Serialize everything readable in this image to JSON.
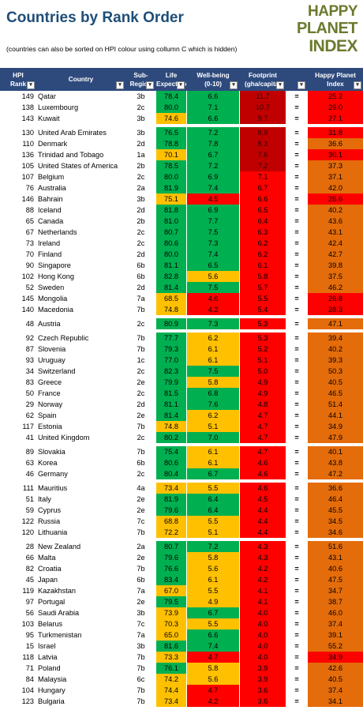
{
  "title": "Countries by Rank Order",
  "subtitle": "(countries can also be sorted on HPI colour using collumn C which is hidden)",
  "logo": {
    "line1": "HAPPY",
    "line2": "PLANET",
    "line3": "INDEX"
  },
  "colors": {
    "header_bg": "#2e4a7d",
    "green": "#00b050",
    "yellow": "#ffc000",
    "red": "#ff0000",
    "dark_red": "#c00000",
    "orange": "#e46c0a",
    "title": "#1f4e79",
    "logo": "#6b7a2e"
  },
  "headers": {
    "rank": [
      "HPI",
      "Rank"
    ],
    "country": [
      "Country"
    ],
    "sub": [
      "Sub-",
      "Region"
    ],
    "life": [
      "Life",
      "Expectancy"
    ],
    "wb": [
      "Well-being",
      "(0-10)"
    ],
    "fp": [
      "Footprint",
      "(gha/capita)"
    ],
    "cmp": [
      ""
    ],
    "hpi": [
      "Happy Planet",
      "Index"
    ]
  },
  "rows": [
    {
      "rank": "149",
      "country": "Qatar",
      "sub": "3b",
      "life": "78.4",
      "wb": "6.6",
      "fp": "11.7",
      "cmp": "=",
      "hpi": "25.2",
      "lc": "g",
      "wc": "g",
      "fc": "dr",
      "hc": "r"
    },
    {
      "rank": "138",
      "country": "Luxembourg",
      "sub": "2c",
      "life": "80.0",
      "wb": "7.1",
      "fp": "10.7",
      "cmp": "=",
      "hpi": "29.0",
      "lc": "g",
      "wc": "g",
      "fc": "dr",
      "hc": "r"
    },
    {
      "rank": "143",
      "country": "Kuwait",
      "sub": "3b",
      "life": "74.6",
      "wb": "6.6",
      "fp": "9.7",
      "cmp": "=",
      "hpi": "27.1",
      "lc": "y",
      "wc": "g",
      "fc": "dr",
      "hc": "r"
    },
    {
      "gap": true
    },
    {
      "rank": "130",
      "country": "United Arab Emirates",
      "sub": "3b",
      "life": "76.5",
      "wb": "7.2",
      "fp": "8.9",
      "cmp": "=",
      "hpi": "31.8",
      "lc": "g",
      "wc": "g",
      "fc": "dr",
      "hc": "r"
    },
    {
      "rank": "110",
      "country": "Denmark",
      "sub": "2d",
      "life": "78.8",
      "wb": "7.8",
      "fp": "8.3",
      "cmp": "=",
      "hpi": "36.6",
      "lc": "g",
      "wc": "g",
      "fc": "dr",
      "hc": "o"
    },
    {
      "rank": "136",
      "country": "Trinidad and Tobago",
      "sub": "1a",
      "life": "70.1",
      "wb": "6.7",
      "fp": "7.6",
      "cmp": "=",
      "hpi": "30.1",
      "lc": "y",
      "wc": "g",
      "fc": "dr",
      "hc": "r"
    },
    {
      "rank": "105",
      "country": "United States of America",
      "sub": "2b",
      "life": "78.5",
      "wb": "7.2",
      "fp": "7.2",
      "cmp": "=",
      "hpi": "37.3",
      "lc": "g",
      "wc": "g",
      "fc": "dr",
      "hc": "o"
    },
    {
      "rank": "107",
      "country": "Belgium",
      "sub": "2c",
      "life": "80.0",
      "wb": "6.9",
      "fp": "7.1",
      "cmp": "=",
      "hpi": "37.1",
      "lc": "g",
      "wc": "g",
      "fc": "r",
      "hc": "o"
    },
    {
      "rank": "76",
      "country": "Australia",
      "sub": "2a",
      "life": "81.9",
      "wb": "7.4",
      "fp": "6.7",
      "cmp": "=",
      "hpi": "42.0",
      "lc": "g",
      "wc": "g",
      "fc": "r",
      "hc": "o"
    },
    {
      "rank": "146",
      "country": "Bahrain",
      "sub": "3b",
      "life": "75.1",
      "wb": "4.5",
      "fp": "6.6",
      "cmp": "=",
      "hpi": "26.6",
      "lc": "y",
      "wc": "r",
      "fc": "r",
      "hc": "r"
    },
    {
      "rank": "88",
      "country": "Iceland",
      "sub": "2d",
      "life": "81.8",
      "wb": "6.9",
      "fp": "6.5",
      "cmp": "=",
      "hpi": "40.2",
      "lc": "g",
      "wc": "g",
      "fc": "r",
      "hc": "o"
    },
    {
      "rank": "65",
      "country": "Canada",
      "sub": "2b",
      "life": "81.0",
      "wb": "7.7",
      "fp": "6.4",
      "cmp": "=",
      "hpi": "43.6",
      "lc": "g",
      "wc": "g",
      "fc": "r",
      "hc": "o"
    },
    {
      "rank": "67",
      "country": "Netherlands",
      "sub": "2c",
      "life": "80.7",
      "wb": "7.5",
      "fp": "6.3",
      "cmp": "=",
      "hpi": "43.1",
      "lc": "g",
      "wc": "g",
      "fc": "r",
      "hc": "o"
    },
    {
      "rank": "73",
      "country": "Ireland",
      "sub": "2c",
      "life": "80.6",
      "wb": "7.3",
      "fp": "6.2",
      "cmp": "=",
      "hpi": "42.4",
      "lc": "g",
      "wc": "g",
      "fc": "r",
      "hc": "o"
    },
    {
      "rank": "70",
      "country": "Finland",
      "sub": "2d",
      "life": "80.0",
      "wb": "7.4",
      "fp": "6.2",
      "cmp": "=",
      "hpi": "42.7",
      "lc": "g",
      "wc": "g",
      "fc": "r",
      "hc": "o"
    },
    {
      "rank": "90",
      "country": "Singapore",
      "sub": "6b",
      "life": "81.1",
      "wb": "6.5",
      "fp": "6.1",
      "cmp": "=",
      "hpi": "39.8",
      "lc": "g",
      "wc": "g",
      "fc": "r",
      "hc": "o"
    },
    {
      "rank": "102",
      "country": "Hong Kong",
      "sub": "6b",
      "life": "82.8",
      "wb": "5.6",
      "fp": "5.8",
      "cmp": "=",
      "hpi": "37.5",
      "lc": "g",
      "wc": "y",
      "fc": "r",
      "hc": "o"
    },
    {
      "rank": "52",
      "country": "Sweden",
      "sub": "2d",
      "life": "81.4",
      "wb": "7.5",
      "fp": "5.7",
      "cmp": "=",
      "hpi": "46.2",
      "lc": "g",
      "wc": "g",
      "fc": "r",
      "hc": "o"
    },
    {
      "rank": "145",
      "country": "Mongolia",
      "sub": "7a",
      "life": "68.5",
      "wb": "4.6",
      "fp": "5.5",
      "cmp": "=",
      "hpi": "26.8",
      "lc": "y",
      "wc": "r",
      "fc": "r",
      "hc": "r"
    },
    {
      "rank": "140",
      "country": "Macedonia",
      "sub": "7b",
      "life": "74.8",
      "wb": "4.2",
      "fp": "5.4",
      "cmp": "=",
      "hpi": "28.3",
      "lc": "y",
      "wc": "r",
      "fc": "r",
      "hc": "r"
    },
    {
      "gap": true
    },
    {
      "rank": "48",
      "country": "Austria",
      "sub": "2c",
      "life": "80.9",
      "wb": "7.3",
      "fp": "5.3",
      "cmp": "=",
      "hpi": "47.1",
      "lc": "g",
      "wc": "g",
      "fc": "r",
      "hc": "o"
    },
    {
      "gap": true
    },
    {
      "rank": "92",
      "country": "Czech Republic",
      "sub": "7b",
      "life": "77.7",
      "wb": "6.2",
      "fp": "5.3",
      "cmp": "=",
      "hpi": "39.4",
      "lc": "g",
      "wc": "y",
      "fc": "r",
      "hc": "o"
    },
    {
      "rank": "87",
      "country": "Slovenia",
      "sub": "7b",
      "life": "79.3",
      "wb": "6.1",
      "fp": "5.2",
      "cmp": "=",
      "hpi": "40.2",
      "lc": "g",
      "wc": "y",
      "fc": "r",
      "hc": "o"
    },
    {
      "rank": "93",
      "country": "Uruguay",
      "sub": "1c",
      "life": "77.0",
      "wb": "6.1",
      "fp": "5.1",
      "cmp": "=",
      "hpi": "39.3",
      "lc": "g",
      "wc": "y",
      "fc": "r",
      "hc": "o"
    },
    {
      "rank": "34",
      "country": "Switzerland",
      "sub": "2c",
      "life": "82.3",
      "wb": "7.5",
      "fp": "5.0",
      "cmp": "=",
      "hpi": "50.3",
      "lc": "g",
      "wc": "g",
      "fc": "r",
      "hc": "o"
    },
    {
      "rank": "83",
      "country": "Greece",
      "sub": "2e",
      "life": "79.9",
      "wb": "5.8",
      "fp": "4.9",
      "cmp": "=",
      "hpi": "40.5",
      "lc": "g",
      "wc": "y",
      "fc": "r",
      "hc": "o"
    },
    {
      "rank": "50",
      "country": "France",
      "sub": "2c",
      "life": "81.5",
      "wb": "6.8",
      "fp": "4.9",
      "cmp": "=",
      "hpi": "46.5",
      "lc": "g",
      "wc": "g",
      "fc": "r",
      "hc": "o"
    },
    {
      "rank": "29",
      "country": "Norway",
      "sub": "2d",
      "life": "81.1",
      "wb": "7.6",
      "fp": "4.8",
      "cmp": "=",
      "hpi": "51.4",
      "lc": "g",
      "wc": "g",
      "fc": "r",
      "hc": "o"
    },
    {
      "rank": "62",
      "country": "Spain",
      "sub": "2e",
      "life": "81.4",
      "wb": "6.2",
      "fp": "4.7",
      "cmp": "=",
      "hpi": "44.1",
      "lc": "g",
      "wc": "y",
      "fc": "r",
      "hc": "o"
    },
    {
      "rank": "117",
      "country": "Estonia",
      "sub": "7b",
      "life": "74.8",
      "wb": "5.1",
      "fp": "4.7",
      "cmp": "=",
      "hpi": "34.9",
      "lc": "y",
      "wc": "y",
      "fc": "r",
      "hc": "o"
    },
    {
      "rank": "41",
      "country": "United Kingdom",
      "sub": "2c",
      "life": "80.2",
      "wb": "7.0",
      "fp": "4.7",
      "cmp": "=",
      "hpi": "47.9",
      "lc": "g",
      "wc": "g",
      "fc": "r",
      "hc": "o"
    },
    {
      "gap": true
    },
    {
      "rank": "89",
      "country": "Slovakia",
      "sub": "7b",
      "life": "75.4",
      "wb": "6.1",
      "fp": "4.7",
      "cmp": "=",
      "hpi": "40.1",
      "lc": "g",
      "wc": "y",
      "fc": "r",
      "hc": "o"
    },
    {
      "rank": "63",
      "country": "Korea",
      "sub": "6b",
      "life": "80.6",
      "wb": "6.1",
      "fp": "4.6",
      "cmp": "=",
      "hpi": "43.8",
      "lc": "g",
      "wc": "y",
      "fc": "r",
      "hc": "o"
    },
    {
      "rank": "46",
      "country": "Germany",
      "sub": "2c",
      "life": "80.4",
      "wb": "6.7",
      "fp": "4.6",
      "cmp": "=",
      "hpi": "47.2",
      "lc": "g",
      "wc": "g",
      "fc": "r",
      "hc": "o"
    },
    {
      "gap": true
    },
    {
      "rank": "111",
      "country": "Mauritius",
      "sub": "4a",
      "life": "73.4",
      "wb": "5.5",
      "fp": "4.6",
      "cmp": "=",
      "hpi": "36.6",
      "lc": "y",
      "wc": "y",
      "fc": "r",
      "hc": "o"
    },
    {
      "rank": "51",
      "country": "Italy",
      "sub": "2e",
      "life": "81.9",
      "wb": "6.4",
      "fp": "4.5",
      "cmp": "=",
      "hpi": "46.4",
      "lc": "g",
      "wc": "g",
      "fc": "r",
      "hc": "o"
    },
    {
      "rank": "59",
      "country": "Cyprus",
      "sub": "2e",
      "life": "79.6",
      "wb": "6.4",
      "fp": "4.4",
      "cmp": "=",
      "hpi": "45.5",
      "lc": "g",
      "wc": "g",
      "fc": "r",
      "hc": "o"
    },
    {
      "rank": "122",
      "country": "Russia",
      "sub": "7c",
      "life": "68.8",
      "wb": "5.5",
      "fp": "4.4",
      "cmp": "=",
      "hpi": "34.5",
      "lc": "y",
      "wc": "y",
      "fc": "r",
      "hc": "o"
    },
    {
      "rank": "120",
      "country": "Lithuania",
      "sub": "7b",
      "life": "72.2",
      "wb": "5.1",
      "fp": "4.4",
      "cmp": "=",
      "hpi": "34.6",
      "lc": "y",
      "wc": "y",
      "fc": "r",
      "hc": "o"
    },
    {
      "gap": true
    },
    {
      "rank": "28",
      "country": "New Zealand",
      "sub": "2a",
      "life": "80.7",
      "wb": "7.2",
      "fp": "4.3",
      "cmp": "=",
      "hpi": "51.6",
      "lc": "g",
      "wc": "g",
      "fc": "r",
      "hc": "o"
    },
    {
      "rank": "66",
      "country": "Malta",
      "sub": "2e",
      "life": "79.6",
      "wb": "5.8",
      "fp": "4.3",
      "cmp": "=",
      "hpi": "43.1",
      "lc": "g",
      "wc": "y",
      "fc": "r",
      "hc": "o"
    },
    {
      "rank": "82",
      "country": "Croatia",
      "sub": "7b",
      "life": "76.6",
      "wb": "5.6",
      "fp": "4.2",
      "cmp": "=",
      "hpi": "40.6",
      "lc": "g",
      "wc": "y",
      "fc": "r",
      "hc": "o"
    },
    {
      "rank": "45",
      "country": "Japan",
      "sub": "6b",
      "life": "83.4",
      "wb": "6.1",
      "fp": "4.2",
      "cmp": "=",
      "hpi": "47.5",
      "lc": "g",
      "wc": "y",
      "fc": "r",
      "hc": "o"
    },
    {
      "rank": "119",
      "country": "Kazakhstan",
      "sub": "7a",
      "life": "67.0",
      "wb": "5.5",
      "fp": "4.1",
      "cmp": "=",
      "hpi": "34.7",
      "lc": "y",
      "wc": "y",
      "fc": "r",
      "hc": "o"
    },
    {
      "rank": "97",
      "country": "Portugal",
      "sub": "2e",
      "life": "79.5",
      "wb": "4.9",
      "fp": "4.1",
      "cmp": "=",
      "hpi": "38.7",
      "lc": "g",
      "wc": "y",
      "fc": "r",
      "hc": "o"
    },
    {
      "rank": "56",
      "country": "Saudi Arabia",
      "sub": "3b",
      "life": "73.9",
      "wb": "6.7",
      "fp": "4.0",
      "cmp": "=",
      "hpi": "46.0",
      "lc": "y",
      "wc": "g",
      "fc": "r",
      "hc": "o"
    },
    {
      "rank": "103",
      "country": "Belarus",
      "sub": "7c",
      "life": "70.3",
      "wb": "5.5",
      "fp": "4.0",
      "cmp": "=",
      "hpi": "37.4",
      "lc": "y",
      "wc": "y",
      "fc": "r",
      "hc": "o"
    },
    {
      "rank": "95",
      "country": "Turkmenistan",
      "sub": "7a",
      "life": "65.0",
      "wb": "6.6",
      "fp": "4.0",
      "cmp": "=",
      "hpi": "39.1",
      "lc": "y",
      "wc": "g",
      "fc": "r",
      "hc": "o"
    },
    {
      "rank": "15",
      "country": "Israel",
      "sub": "3b",
      "life": "81.6",
      "wb": "7.4",
      "fp": "4.0",
      "cmp": "=",
      "hpi": "55.2",
      "lc": "g",
      "wc": "g",
      "fc": "r",
      "hc": "o"
    },
    {
      "rank": "118",
      "country": "Latvia",
      "sub": "7b",
      "life": "73.3",
      "wb": "4.7",
      "fp": "4.0",
      "cmp": "=",
      "hpi": "34.9",
      "lc": "y",
      "wc": "r",
      "fc": "r",
      "hc": "r"
    },
    {
      "rank": "71",
      "country": "Poland",
      "sub": "7b",
      "life": "76.1",
      "wb": "5.8",
      "fp": "3.9",
      "cmp": "=",
      "hpi": "42.6",
      "lc": "g",
      "wc": "y",
      "fc": "r",
      "hc": "o"
    },
    {
      "rank": "84",
      "country": "Malaysia",
      "sub": "6c",
      "life": "74.2",
      "wb": "5.6",
      "fp": "3.9",
      "cmp": "=",
      "hpi": "40.5",
      "lc": "y",
      "wc": "y",
      "fc": "r",
      "hc": "o"
    },
    {
      "rank": "104",
      "country": "Hungary",
      "sub": "7b",
      "life": "74.4",
      "wb": "4.7",
      "fp": "3.6",
      "cmp": "=",
      "hpi": "37.4",
      "lc": "y",
      "wc": "r",
      "fc": "r",
      "hc": "o"
    },
    {
      "rank": "123",
      "country": "Bulgaria",
      "sub": "7b",
      "life": "73.4",
      "wb": "4.2",
      "fp": "3.6",
      "cmp": "=",
      "hpi": "34.1",
      "lc": "y",
      "wc": "r",
      "fc": "r",
      "hc": "o"
    }
  ]
}
